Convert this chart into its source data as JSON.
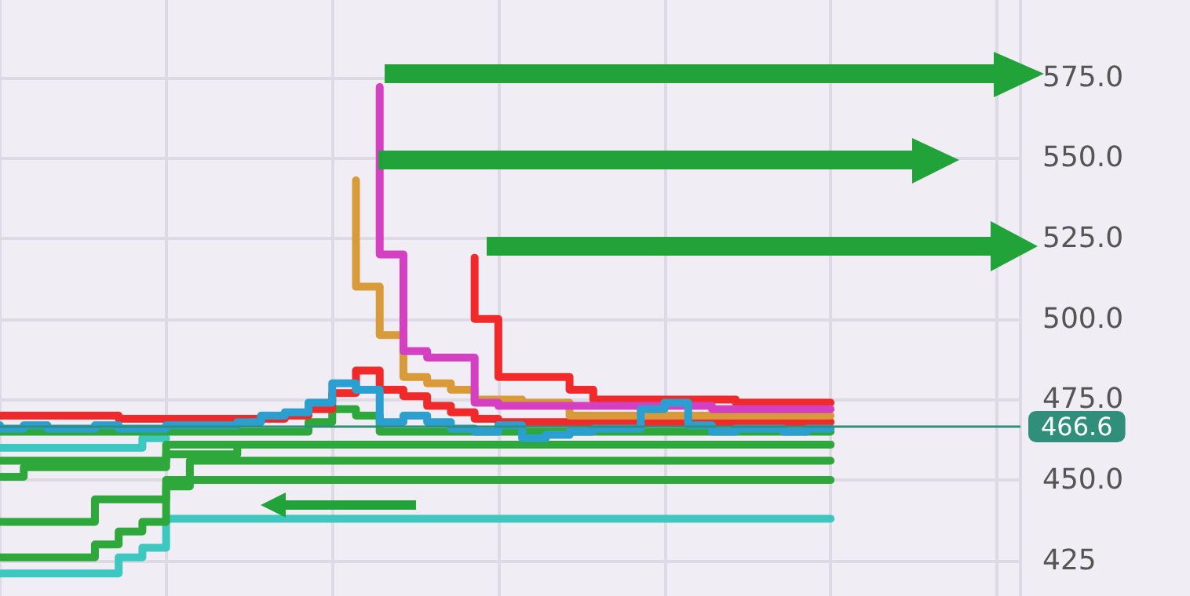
{
  "chart_data": {
    "type": "step",
    "categories": [
      null,
      null,
      null,
      null,
      null,
      null,
      null,
      null,
      null,
      null,
      null,
      null,
      null,
      null,
      null,
      null,
      null,
      null,
      null,
      null,
      null,
      null,
      null,
      null,
      null,
      null,
      null,
      null,
      null,
      null,
      null,
      null,
      null,
      null,
      null,
      null,
      null,
      null,
      null,
      null,
      null,
      null,
      null,
      null
    ],
    "ylim": [
      414,
      599
    ],
    "yticks": [
      425,
      {
        "value": 450,
        "label": "450.0"
      },
      {
        "value": 475,
        "label": "475.0"
      },
      {
        "value": 500,
        "label": "500.0"
      },
      {
        "value": 525,
        "label": "525.0"
      },
      {
        "value": 550,
        "label": "550.0"
      },
      {
        "value": 575,
        "label": "575.0"
      }
    ],
    "grid": true,
    "tick_labels": "y",
    "marker": "none",
    "line_style": "solid",
    "ref_lines": [
      {
        "axis": "y",
        "value": 466.6,
        "label": "466.6",
        "color": "#2f8f7a"
      }
    ],
    "series": [
      {
        "color": "#3cc8c0",
        "values": [
          421,
          421,
          421,
          421,
          421,
          421,
          426,
          429,
          438,
          438,
          438,
          438,
          438,
          438,
          438,
          438,
          438,
          438,
          438,
          438,
          438,
          438,
          438,
          438,
          438,
          438,
          438,
          438,
          438,
          438,
          438,
          438,
          438,
          438,
          438,
          438,
          null,
          null,
          null,
          null,
          null,
          null,
          null,
          null
        ]
      },
      {
        "color": "#3cc8c0",
        "values": [
          460,
          460,
          460,
          460,
          460,
          460,
          460,
          463,
          null,
          null,
          null,
          null,
          null,
          null,
          null,
          null,
          null,
          null,
          null,
          null,
          null,
          null,
          null,
          null,
          null,
          null,
          null,
          null,
          null,
          null,
          null,
          null,
          null,
          null,
          null,
          null,
          null,
          null,
          null,
          null,
          null,
          null,
          null,
          null
        ]
      },
      {
        "color": "#2ea83a",
        "values": [
          426,
          426,
          426,
          426,
          426,
          430,
          434,
          437,
          450,
          450,
          450,
          450,
          450,
          450,
          450,
          450,
          450,
          450,
          450,
          450,
          450,
          450,
          450,
          450,
          450,
          450,
          450,
          450,
          450,
          450,
          450,
          450,
          450,
          450,
          450,
          450,
          null,
          null,
          null,
          null,
          null,
          null,
          null,
          null
        ]
      },
      {
        "color": "#2ea83a",
        "values": [
          437,
          437,
          437,
          437,
          437,
          444,
          444,
          444,
          448,
          456,
          456,
          456,
          456,
          456,
          456,
          456,
          456,
          456,
          456,
          456,
          456,
          456,
          456,
          456,
          456,
          456,
          456,
          456,
          456,
          456,
          456,
          456,
          456,
          456,
          456,
          456,
          null,
          null,
          null,
          null,
          null,
          null,
          null,
          null
        ]
      },
      {
        "color": "#2ea83a",
        "values": [
          451,
          451,
          454,
          454,
          454,
          454,
          454,
          454,
          461,
          461,
          461,
          461,
          461,
          461,
          461,
          461,
          461,
          461,
          461,
          461,
          461,
          461,
          461,
          461,
          461,
          461,
          461,
          461,
          461,
          461,
          461,
          461,
          461,
          461,
          461,
          461,
          null,
          null,
          null,
          null,
          null,
          null,
          null,
          null
        ]
      },
      {
        "color": "#2ea83a",
        "values": [
          456,
          456,
          456,
          456,
          456,
          456,
          456,
          456,
          458,
          458,
          458,
          461,
          461,
          461,
          461,
          461,
          461,
          461,
          461,
          461,
          461,
          461,
          461,
          461,
          461,
          461,
          461,
          461,
          461,
          461,
          461,
          461,
          461,
          461,
          461,
          461,
          null,
          null,
          null,
          null,
          null,
          null,
          null,
          null
        ]
      },
      {
        "color": "#2ea83a",
        "values": [
          465,
          465,
          465,
          465,
          465,
          465,
          465,
          465,
          465,
          465,
          465,
          465,
          465,
          465,
          468,
          472,
          470,
          465,
          465,
          465,
          465,
          465,
          465,
          465,
          465,
          465,
          465,
          465,
          465,
          465,
          465,
          465,
          465,
          465,
          465,
          465,
          null,
          null,
          null,
          null,
          null,
          null,
          null,
          null
        ]
      },
      {
        "color": "#f02a2a",
        "values": [
          470,
          470,
          470,
          470,
          470,
          470,
          469,
          469,
          469,
          469,
          469,
          469,
          469,
          470,
          472,
          477,
          484,
          478,
          476,
          473,
          471,
          469,
          468,
          468,
          468,
          468,
          468,
          468,
          468,
          468,
          468,
          468,
          468,
          468,
          468,
          468,
          null,
          null,
          null,
          null,
          null,
          null,
          null,
          null
        ]
      },
      {
        "color": "#f02a2a",
        "values": [
          null,
          null,
          null,
          null,
          null,
          null,
          null,
          null,
          null,
          null,
          null,
          null,
          null,
          null,
          null,
          null,
          null,
          null,
          null,
          null,
          519,
          500,
          482,
          482,
          482,
          478,
          475,
          475,
          475,
          475,
          475,
          475,
          474,
          474,
          474,
          474,
          null,
          null,
          null,
          null,
          null,
          null,
          null,
          null
        ]
      },
      {
        "color": "#d99a3a",
        "values": [
          null,
          null,
          null,
          null,
          null,
          null,
          null,
          null,
          null,
          null,
          null,
          null,
          null,
          null,
          null,
          543,
          510,
          495,
          482,
          480,
          478,
          475,
          475,
          474,
          474,
          470,
          470,
          470,
          470,
          470,
          470,
          470,
          470,
          470,
          470,
          470,
          null,
          null,
          null,
          null,
          null,
          null,
          null,
          null
        ]
      },
      {
        "color": "#d53fc2",
        "values": [
          null,
          null,
          null,
          null,
          null,
          null,
          null,
          null,
          null,
          null,
          null,
          null,
          null,
          null,
          null,
          null,
          572,
          520,
          490,
          488,
          488,
          474,
          473,
          473,
          473,
          473,
          473,
          473,
          473,
          473,
          473,
          472,
          472,
          472,
          472,
          472,
          null,
          null,
          null,
          null,
          null,
          null,
          null,
          null
        ]
      },
      {
        "color": "#2a9fd0",
        "values": [
          467,
          466,
          467,
          466,
          466,
          467,
          466,
          466,
          467,
          467,
          467,
          468,
          470,
          471,
          474,
          480,
          478,
          468,
          470,
          468,
          466,
          465,
          467,
          463,
          464,
          465,
          466,
          466,
          472,
          474,
          467,
          465,
          466,
          466,
          465,
          466,
          null,
          null,
          null,
          null,
          null,
          null,
          null,
          null
        ]
      }
    ]
  }
}
